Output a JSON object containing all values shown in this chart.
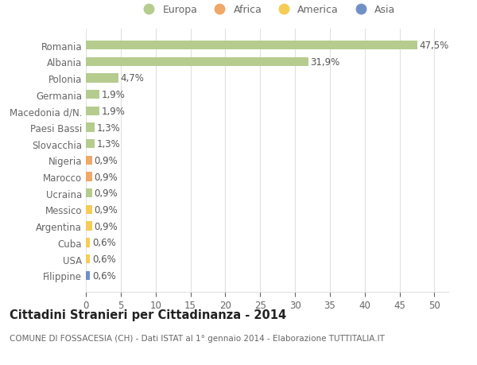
{
  "categories": [
    "Romania",
    "Albania",
    "Polonia",
    "Germania",
    "Macedonia d/N.",
    "Paesi Bassi",
    "Slovacchia",
    "Nigeria",
    "Marocco",
    "Ucraina",
    "Messico",
    "Argentina",
    "Cuba",
    "USA",
    "Filippine"
  ],
  "values": [
    47.5,
    31.9,
    4.7,
    1.9,
    1.9,
    1.3,
    1.3,
    0.9,
    0.9,
    0.9,
    0.9,
    0.9,
    0.6,
    0.6,
    0.6
  ],
  "labels": [
    "47,5%",
    "31,9%",
    "4,7%",
    "1,9%",
    "1,9%",
    "1,3%",
    "1,3%",
    "0,9%",
    "0,9%",
    "0,9%",
    "0,9%",
    "0,9%",
    "0,6%",
    "0,6%",
    "0,6%"
  ],
  "continents": [
    "Europa",
    "Europa",
    "Europa",
    "Europa",
    "Europa",
    "Europa",
    "Europa",
    "Africa",
    "Africa",
    "Europa",
    "America",
    "America",
    "America",
    "America",
    "Asia"
  ],
  "colors": {
    "Europa": "#b5cc8e",
    "Africa": "#f0a868",
    "America": "#f5cc55",
    "Asia": "#7090c8"
  },
  "bg_color": "#ffffff",
  "plot_bg_color": "#ffffff",
  "title": "Cittadini Stranieri per Cittadinanza - 2014",
  "subtitle": "COMUNE DI FOSSACESIA (CH) - Dati ISTAT al 1° gennaio 2014 - Elaborazione TUTTITALIA.IT",
  "xlim": [
    0,
    52
  ],
  "xticks": [
    0,
    5,
    10,
    15,
    20,
    25,
    30,
    35,
    40,
    45,
    50
  ],
  "grid_color": "#e0e0e0",
  "text_color": "#666666",
  "bar_label_color": "#555555",
  "label_fontsize": 8.5,
  "ytick_fontsize": 8.5,
  "xtick_fontsize": 8.5,
  "title_fontsize": 10.5,
  "subtitle_fontsize": 7.5,
  "legend_fontsize": 9,
  "bar_height": 0.55
}
